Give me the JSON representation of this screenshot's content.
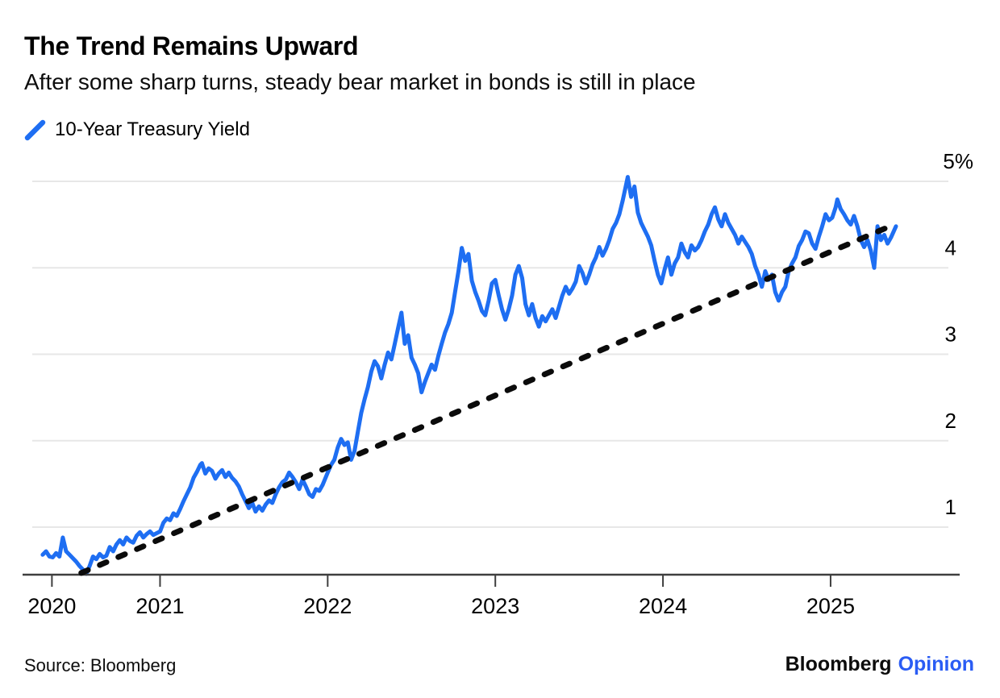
{
  "header": {
    "title": "The Trend Remains Upward",
    "subtitle": "After some sharp turns, steady bear market in bonds is still in place"
  },
  "legend": {
    "label": "10-Year Treasury Yield",
    "color": "#1e6ef2"
  },
  "footer": {
    "source": "Source: Bloomberg",
    "logo": {
      "brand": "Bloomberg",
      "suffix": "Opinion",
      "suffix_color": "#2a5cf4"
    }
  },
  "chart_data": {
    "type": "line",
    "title": "The Trend Remains Upward",
    "xlabel": "",
    "ylabel": "10-Year Treasury Yield (%)",
    "grid": "horizontal",
    "legend_position": "top-left",
    "y_axis_side": "right",
    "xlim": [
      2020.18,
      2025.77
    ],
    "ylim": [
      0.45,
      5.0
    ],
    "palette": {
      "grid": "#e7e7e7",
      "axis": "#3f3f3f",
      "text": "#000000"
    },
    "x_ticks": [
      {
        "label": "2020",
        "t": 2020.355
      },
      {
        "label": "2021",
        "t": 2021
      },
      {
        "label": "2022",
        "t": 2022
      },
      {
        "label": "2023",
        "t": 2023
      },
      {
        "label": "2024",
        "t": 2024
      },
      {
        "label": "2025",
        "t": 2025
      }
    ],
    "y_ticks": [
      {
        "label": "5%",
        "v": 5
      },
      {
        "label": "4",
        "v": 4
      },
      {
        "label": "3",
        "v": 3
      },
      {
        "label": "2",
        "v": 2
      },
      {
        "label": "1",
        "v": 1
      }
    ],
    "trend_line": {
      "style": "dashed",
      "color": "#0b0b0b",
      "from": [
        2020.53,
        0.47
      ],
      "to": [
        2025.33,
        4.46
      ]
    },
    "series": [
      {
        "name": "10-Year Treasury Yield",
        "color": "#1e6ef2",
        "points": [
          [
            2020.3,
            0.68
          ],
          [
            2020.32,
            0.72
          ],
          [
            2020.34,
            0.66
          ],
          [
            2020.36,
            0.65
          ],
          [
            2020.38,
            0.7
          ],
          [
            2020.4,
            0.66
          ],
          [
            2020.42,
            0.88
          ],
          [
            2020.44,
            0.72
          ],
          [
            2020.46,
            0.68
          ],
          [
            2020.48,
            0.64
          ],
          [
            2020.5,
            0.6
          ],
          [
            2020.52,
            0.55
          ],
          [
            2020.54,
            0.51
          ],
          [
            2020.56,
            0.46
          ],
          [
            2020.58,
            0.55
          ],
          [
            2020.6,
            0.66
          ],
          [
            2020.62,
            0.63
          ],
          [
            2020.64,
            0.69
          ],
          [
            2020.66,
            0.65
          ],
          [
            2020.68,
            0.67
          ],
          [
            2020.7,
            0.77
          ],
          [
            2020.72,
            0.72
          ],
          [
            2020.74,
            0.8
          ],
          [
            2020.76,
            0.85
          ],
          [
            2020.78,
            0.8
          ],
          [
            2020.8,
            0.88
          ],
          [
            2020.82,
            0.84
          ],
          [
            2020.84,
            0.82
          ],
          [
            2020.86,
            0.9
          ],
          [
            2020.88,
            0.94
          ],
          [
            2020.9,
            0.88
          ],
          [
            2020.92,
            0.92
          ],
          [
            2020.94,
            0.95
          ],
          [
            2020.96,
            0.91
          ],
          [
            2020.98,
            0.93
          ],
          [
            2021.0,
            0.95
          ],
          [
            2021.02,
            1.05
          ],
          [
            2021.04,
            1.1
          ],
          [
            2021.06,
            1.08
          ],
          [
            2021.08,
            1.16
          ],
          [
            2021.1,
            1.13
          ],
          [
            2021.12,
            1.21
          ],
          [
            2021.14,
            1.3
          ],
          [
            2021.16,
            1.38
          ],
          [
            2021.18,
            1.46
          ],
          [
            2021.2,
            1.57
          ],
          [
            2021.22,
            1.64
          ],
          [
            2021.24,
            1.72
          ],
          [
            2021.25,
            1.74
          ],
          [
            2021.27,
            1.62
          ],
          [
            2021.29,
            1.68
          ],
          [
            2021.31,
            1.65
          ],
          [
            2021.33,
            1.56
          ],
          [
            2021.35,
            1.62
          ],
          [
            2021.37,
            1.66
          ],
          [
            2021.39,
            1.58
          ],
          [
            2021.41,
            1.63
          ],
          [
            2021.43,
            1.57
          ],
          [
            2021.45,
            1.53
          ],
          [
            2021.47,
            1.47
          ],
          [
            2021.49,
            1.38
          ],
          [
            2021.51,
            1.3
          ],
          [
            2021.53,
            1.22
          ],
          [
            2021.55,
            1.28
          ],
          [
            2021.57,
            1.18
          ],
          [
            2021.59,
            1.24
          ],
          [
            2021.61,
            1.19
          ],
          [
            2021.63,
            1.26
          ],
          [
            2021.65,
            1.31
          ],
          [
            2021.67,
            1.28
          ],
          [
            2021.69,
            1.38
          ],
          [
            2021.71,
            1.46
          ],
          [
            2021.73,
            1.52
          ],
          [
            2021.75,
            1.55
          ],
          [
            2021.77,
            1.63
          ],
          [
            2021.79,
            1.58
          ],
          [
            2021.81,
            1.52
          ],
          [
            2021.83,
            1.44
          ],
          [
            2021.85,
            1.55
          ],
          [
            2021.87,
            1.47
          ],
          [
            2021.89,
            1.38
          ],
          [
            2021.91,
            1.35
          ],
          [
            2021.93,
            1.44
          ],
          [
            2021.95,
            1.42
          ],
          [
            2021.97,
            1.49
          ],
          [
            2022.0,
            1.63
          ],
          [
            2022.02,
            1.72
          ],
          [
            2022.04,
            1.78
          ],
          [
            2022.06,
            1.92
          ],
          [
            2022.08,
            2.02
          ],
          [
            2022.1,
            1.95
          ],
          [
            2022.12,
            1.98
          ],
          [
            2022.14,
            1.78
          ],
          [
            2022.16,
            1.88
          ],
          [
            2022.18,
            2.1
          ],
          [
            2022.2,
            2.32
          ],
          [
            2022.22,
            2.48
          ],
          [
            2022.24,
            2.62
          ],
          [
            2022.26,
            2.8
          ],
          [
            2022.28,
            2.92
          ],
          [
            2022.3,
            2.86
          ],
          [
            2022.32,
            2.72
          ],
          [
            2022.34,
            2.88
          ],
          [
            2022.36,
            3.02
          ],
          [
            2022.38,
            2.94
          ],
          [
            2022.4,
            3.12
          ],
          [
            2022.42,
            3.3
          ],
          [
            2022.44,
            3.48
          ],
          [
            2022.46,
            3.12
          ],
          [
            2022.48,
            3.22
          ],
          [
            2022.5,
            2.96
          ],
          [
            2022.52,
            2.88
          ],
          [
            2022.54,
            2.78
          ],
          [
            2022.56,
            2.56
          ],
          [
            2022.58,
            2.68
          ],
          [
            2022.6,
            2.78
          ],
          [
            2022.62,
            2.88
          ],
          [
            2022.64,
            2.82
          ],
          [
            2022.66,
            2.98
          ],
          [
            2022.68,
            3.12
          ],
          [
            2022.7,
            3.25
          ],
          [
            2022.72,
            3.35
          ],
          [
            2022.74,
            3.48
          ],
          [
            2022.76,
            3.72
          ],
          [
            2022.78,
            3.96
          ],
          [
            2022.8,
            4.23
          ],
          [
            2022.82,
            4.08
          ],
          [
            2022.84,
            4.16
          ],
          [
            2022.86,
            3.85
          ],
          [
            2022.88,
            3.72
          ],
          [
            2022.9,
            3.62
          ],
          [
            2022.92,
            3.5
          ],
          [
            2022.94,
            3.45
          ],
          [
            2022.96,
            3.62
          ],
          [
            2022.98,
            3.82
          ],
          [
            2023.0,
            3.86
          ],
          [
            2023.02,
            3.68
          ],
          [
            2023.04,
            3.52
          ],
          [
            2023.06,
            3.4
          ],
          [
            2023.08,
            3.52
          ],
          [
            2023.1,
            3.68
          ],
          [
            2023.12,
            3.92
          ],
          [
            2023.14,
            4.02
          ],
          [
            2023.16,
            3.88
          ],
          [
            2023.18,
            3.58
          ],
          [
            2023.2,
            3.45
          ],
          [
            2023.22,
            3.58
          ],
          [
            2023.24,
            3.42
          ],
          [
            2023.26,
            3.32
          ],
          [
            2023.28,
            3.44
          ],
          [
            2023.3,
            3.38
          ],
          [
            2023.32,
            3.45
          ],
          [
            2023.34,
            3.52
          ],
          [
            2023.36,
            3.42
          ],
          [
            2023.38,
            3.55
          ],
          [
            2023.4,
            3.68
          ],
          [
            2023.42,
            3.78
          ],
          [
            2023.44,
            3.7
          ],
          [
            2023.46,
            3.76
          ],
          [
            2023.48,
            3.84
          ],
          [
            2023.5,
            4.02
          ],
          [
            2023.52,
            3.94
          ],
          [
            2023.54,
            3.82
          ],
          [
            2023.56,
            3.92
          ],
          [
            2023.58,
            4.04
          ],
          [
            2023.6,
            4.12
          ],
          [
            2023.62,
            4.24
          ],
          [
            2023.64,
            4.14
          ],
          [
            2023.66,
            4.22
          ],
          [
            2023.68,
            4.32
          ],
          [
            2023.7,
            4.45
          ],
          [
            2023.72,
            4.52
          ],
          [
            2023.74,
            4.62
          ],
          [
            2023.76,
            4.78
          ],
          [
            2023.79,
            5.05
          ],
          [
            2023.81,
            4.82
          ],
          [
            2023.83,
            4.94
          ],
          [
            2023.85,
            4.64
          ],
          [
            2023.87,
            4.52
          ],
          [
            2023.89,
            4.44
          ],
          [
            2023.91,
            4.36
          ],
          [
            2023.93,
            4.26
          ],
          [
            2023.95,
            4.08
          ],
          [
            2023.97,
            3.92
          ],
          [
            2023.99,
            3.82
          ],
          [
            2024.01,
            3.98
          ],
          [
            2024.03,
            4.12
          ],
          [
            2024.05,
            3.92
          ],
          [
            2024.07,
            4.05
          ],
          [
            2024.09,
            4.12
          ],
          [
            2024.11,
            4.28
          ],
          [
            2024.13,
            4.18
          ],
          [
            2024.15,
            4.12
          ],
          [
            2024.17,
            4.26
          ],
          [
            2024.19,
            4.2
          ],
          [
            2024.21,
            4.24
          ],
          [
            2024.23,
            4.32
          ],
          [
            2024.25,
            4.42
          ],
          [
            2024.27,
            4.5
          ],
          [
            2024.29,
            4.62
          ],
          [
            2024.31,
            4.7
          ],
          [
            2024.33,
            4.56
          ],
          [
            2024.35,
            4.48
          ],
          [
            2024.37,
            4.62
          ],
          [
            2024.39,
            4.52
          ],
          [
            2024.41,
            4.45
          ],
          [
            2024.43,
            4.38
          ],
          [
            2024.45,
            4.28
          ],
          [
            2024.47,
            4.36
          ],
          [
            2024.49,
            4.3
          ],
          [
            2024.51,
            4.24
          ],
          [
            2024.53,
            4.16
          ],
          [
            2024.55,
            4.02
          ],
          [
            2024.57,
            3.92
          ],
          [
            2024.59,
            3.78
          ],
          [
            2024.61,
            3.96
          ],
          [
            2024.63,
            3.86
          ],
          [
            2024.65,
            3.92
          ],
          [
            2024.67,
            3.72
          ],
          [
            2024.69,
            3.62
          ],
          [
            2024.71,
            3.72
          ],
          [
            2024.73,
            3.78
          ],
          [
            2024.75,
            3.96
          ],
          [
            2024.77,
            4.05
          ],
          [
            2024.79,
            4.12
          ],
          [
            2024.81,
            4.25
          ],
          [
            2024.83,
            4.32
          ],
          [
            2024.85,
            4.42
          ],
          [
            2024.87,
            4.4
          ],
          [
            2024.89,
            4.28
          ],
          [
            2024.91,
            4.22
          ],
          [
            2024.93,
            4.36
          ],
          [
            2024.95,
            4.48
          ],
          [
            2024.97,
            4.62
          ],
          [
            2024.99,
            4.55
          ],
          [
            2025.01,
            4.58
          ],
          [
            2025.03,
            4.7
          ],
          [
            2025.04,
            4.79
          ],
          [
            2025.06,
            4.68
          ],
          [
            2025.08,
            4.62
          ],
          [
            2025.1,
            4.55
          ],
          [
            2025.12,
            4.5
          ],
          [
            2025.14,
            4.6
          ],
          [
            2025.16,
            4.48
          ],
          [
            2025.18,
            4.32
          ],
          [
            2025.2,
            4.24
          ],
          [
            2025.22,
            4.32
          ],
          [
            2025.24,
            4.2
          ],
          [
            2025.26,
            4.0
          ],
          [
            2025.28,
            4.48
          ],
          [
            2025.3,
            4.32
          ],
          [
            2025.32,
            4.38
          ],
          [
            2025.34,
            4.28
          ],
          [
            2025.36,
            4.35
          ],
          [
            2025.39,
            4.48
          ]
        ]
      }
    ]
  }
}
